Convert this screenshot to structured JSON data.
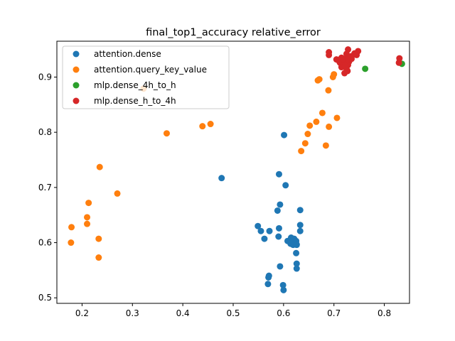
{
  "chart_data": {
    "type": "scatter",
    "title": "final_top1_accuracy  relative_error",
    "xlabel": "",
    "ylabel": "",
    "xlim": [
      0.15,
      0.85
    ],
    "ylim": [
      0.49,
      0.965
    ],
    "xticks": [
      0.2,
      0.3,
      0.4,
      0.5,
      0.6,
      0.7,
      0.8
    ],
    "yticks": [
      0.5,
      0.6,
      0.7,
      0.8,
      0.9
    ],
    "xtick_labels": [
      "0.2",
      "0.3",
      "0.4",
      "0.5",
      "0.6",
      "0.7",
      "0.8"
    ],
    "ytick_labels": [
      "0.5",
      "0.6",
      "0.7",
      "0.8",
      "0.9"
    ],
    "grid": false,
    "legend_position": "upper-left",
    "series": [
      {
        "name": "attention.dense",
        "color": "#1f77b4",
        "points": [
          [
            0.477,
            0.717
          ],
          [
            0.601,
            0.795
          ],
          [
            0.591,
            0.724
          ],
          [
            0.604,
            0.704
          ],
          [
            0.593,
            0.669
          ],
          [
            0.588,
            0.658
          ],
          [
            0.633,
            0.659
          ],
          [
            0.549,
            0.63
          ],
          [
            0.555,
            0.621
          ],
          [
            0.572,
            0.621
          ],
          [
            0.591,
            0.626
          ],
          [
            0.633,
            0.632
          ],
          [
            0.633,
            0.621
          ],
          [
            0.562,
            0.607
          ],
          [
            0.59,
            0.611
          ],
          [
            0.608,
            0.603
          ],
          [
            0.615,
            0.609
          ],
          [
            0.618,
            0.604
          ],
          [
            0.621,
            0.607
          ],
          [
            0.625,
            0.603
          ],
          [
            0.614,
            0.598
          ],
          [
            0.619,
            0.596
          ],
          [
            0.626,
            0.597
          ],
          [
            0.626,
            0.596
          ],
          [
            0.625,
            0.581
          ],
          [
            0.626,
            0.562
          ],
          [
            0.626,
            0.553
          ],
          [
            0.593,
            0.557
          ],
          [
            0.571,
            0.54
          ],
          [
            0.57,
            0.537
          ],
          [
            0.569,
            0.525
          ],
          [
            0.599,
            0.523
          ],
          [
            0.6,
            0.514
          ]
        ]
      },
      {
        "name": "attention.query_key_value",
        "color": "#ff7f0e",
        "points": [
          [
            0.322,
            0.879
          ],
          [
            0.368,
            0.798
          ],
          [
            0.439,
            0.811
          ],
          [
            0.455,
            0.815
          ],
          [
            0.235,
            0.737
          ],
          [
            0.27,
            0.689
          ],
          [
            0.213,
            0.672
          ],
          [
            0.21,
            0.646
          ],
          [
            0.21,
            0.634
          ],
          [
            0.179,
            0.628
          ],
          [
            0.233,
            0.607
          ],
          [
            0.178,
            0.6
          ],
          [
            0.233,
            0.573
          ],
          [
            0.668,
            0.894
          ],
          [
            0.671,
            0.896
          ],
          [
            0.689,
            0.876
          ],
          [
            0.698,
            0.9
          ],
          [
            0.7,
            0.905
          ],
          [
            0.677,
            0.835
          ],
          [
            0.706,
            0.826
          ],
          [
            0.665,
            0.819
          ],
          [
            0.652,
            0.812
          ],
          [
            0.69,
            0.81
          ],
          [
            0.648,
            0.797
          ],
          [
            0.643,
            0.78
          ],
          [
            0.684,
            0.776
          ],
          [
            0.635,
            0.766
          ]
        ]
      },
      {
        "name": "mlp.dense_4h_to_h",
        "color": "#2ca02c",
        "points": [
          [
            0.762,
            0.915
          ],
          [
            0.835,
            0.924
          ]
        ]
      },
      {
        "name": "mlp.dense_h_to_4h",
        "color": "#d62728",
        "points": [
          [
            0.728,
            0.95
          ],
          [
            0.748,
            0.947
          ],
          [
            0.741,
            0.943
          ],
          [
            0.69,
            0.945
          ],
          [
            0.69,
            0.94
          ],
          [
            0.725,
            0.942
          ],
          [
            0.735,
            0.938
          ],
          [
            0.745,
            0.94
          ],
          [
            0.715,
            0.935
          ],
          [
            0.723,
            0.93
          ],
          [
            0.705,
            0.932
          ],
          [
            0.712,
            0.926
          ],
          [
            0.73,
            0.928
          ],
          [
            0.72,
            0.923
          ],
          [
            0.728,
            0.922
          ],
          [
            0.715,
            0.918
          ],
          [
            0.725,
            0.915
          ],
          [
            0.727,
            0.911
          ],
          [
            0.721,
            0.907
          ],
          [
            0.71,
            0.929
          ],
          [
            0.735,
            0.933
          ],
          [
            0.728,
            0.936
          ],
          [
            0.83,
            0.934
          ],
          [
            0.829,
            0.926
          ],
          [
            0.718,
            0.933
          ],
          [
            0.722,
            0.92
          ]
        ]
      }
    ]
  }
}
